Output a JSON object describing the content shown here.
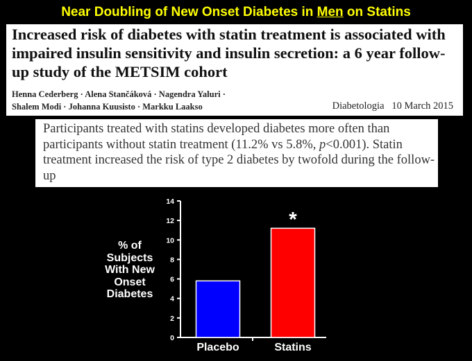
{
  "slide": {
    "title_pre": "Near Doubling of New Onset Diabetes in ",
    "title_em": "Men",
    "title_post": " on Statins"
  },
  "paper": {
    "title": "Increased risk of diabetes with statin treatment is associated with impaired insulin sensitivity and insulin secretion: a 6 year follow-up study of the METSIM cohort",
    "authors_line1": "Henna Cederberg · Alena Stančáková · Nagendra Yaluri ·",
    "authors_line2": "Shalem Modi · Johanna Kuusisto · Markku Laakso",
    "journal": "Diabetologia",
    "date": "10 March 2015"
  },
  "quote": {
    "part1": "Participants treated with statins developed diabetes more often than participants without statin treatment (11.2% vs 5.8%, ",
    "p_symbol": "p",
    "part2": "<0.001). Statin treatment increased the risk of type 2 diabetes by twofold during the follow-up"
  },
  "chart_data": {
    "type": "bar",
    "categories": [
      "Placebo",
      "Statins"
    ],
    "values": [
      5.8,
      11.2
    ],
    "colors": [
      "#0000ff",
      "#ff0000"
    ],
    "ylabel": "% of Subjects With New Onset Diabetes",
    "ylim": [
      0,
      14
    ],
    "yticks": [
      "0",
      "2",
      "4",
      "6",
      "8",
      "10",
      "12",
      "14"
    ],
    "annotation": "*",
    "annotation_category": "Statins"
  }
}
